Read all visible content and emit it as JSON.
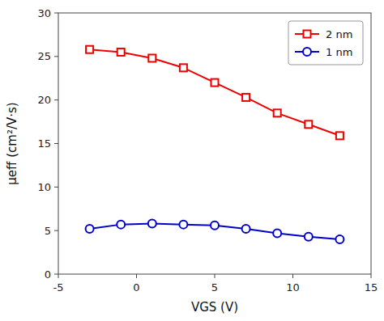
{
  "chart_data": {
    "type": "line",
    "x": [
      -3,
      -1,
      1,
      3,
      5,
      7,
      9,
      11,
      13
    ],
    "series": [
      {
        "name": "2 nm",
        "color": "#EE0000",
        "marker": "square",
        "values": [
          25.8,
          25.5,
          24.8,
          23.7,
          22.0,
          20.3,
          18.5,
          17.2,
          15.9
        ]
      },
      {
        "name": "1 nm",
        "color": "#0000CC",
        "marker": "circle",
        "values": [
          5.2,
          5.7,
          5.8,
          5.7,
          5.6,
          5.2,
          4.7,
          4.3,
          4.0
        ]
      }
    ],
    "xlim": [
      -5,
      15
    ],
    "ylim": [
      0,
      30
    ],
    "xticks": [
      -5,
      0,
      5,
      10,
      15
    ],
    "yticks": [
      0,
      5,
      10,
      15,
      20,
      25,
      30
    ],
    "xlabel": "VGS (V)",
    "ylabel": "μeff (cm²/V·s)",
    "legend": "upper right",
    "grid": false
  }
}
